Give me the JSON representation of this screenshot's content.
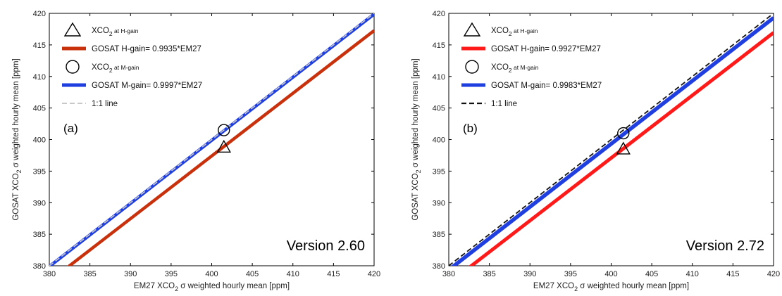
{
  "colors": {
    "red_a": "#c8310c",
    "red_b": "#ff1a1a",
    "blue": "#1f3fe0",
    "oneone_a": "#c8c8c8",
    "oneone_b": "#111111"
  },
  "chart_data": [
    {
      "type": "line",
      "panel": "(a)",
      "version_label": "Version 2.60",
      "xlabel": "EM27 XCO2 σ weighted hourly mean [ppm]",
      "ylabel": "GOSAT XCO2 σ weighted hourly mean [ppm]",
      "xlim": [
        380,
        420
      ],
      "ylim": [
        380,
        420
      ],
      "xticks": [
        380,
        385,
        390,
        395,
        400,
        405,
        410,
        415,
        420
      ],
      "yticks": [
        380,
        385,
        390,
        395,
        400,
        405,
        410,
        415,
        420
      ],
      "grid": false,
      "legend_position": "top-left",
      "legend": [
        {
          "marker": "triangle",
          "prefix": "XCO",
          "sub": "2",
          "suffix": " at H-gain"
        },
        {
          "line": "red",
          "text": "GOSAT H-gain= 0.9935*EM27"
        },
        {
          "marker": "circle",
          "prefix": "XCO",
          "sub": "2",
          "suffix": " at M-gain"
        },
        {
          "line": "blue",
          "text": "GOSAT M-gain= 0.9997*EM27"
        },
        {
          "line": "dashed",
          "text": "1:1 line"
        }
      ],
      "series": [
        {
          "name": "GOSAT H-gain= 0.9935*EM27",
          "slope": 0.9935,
          "x": [
            380,
            420
          ]
        },
        {
          "name": "GOSAT M-gain= 0.9997*EM27",
          "slope": 0.9997,
          "x": [
            380,
            420
          ]
        },
        {
          "name": "1:1 line",
          "slope": 1.0,
          "x": [
            380,
            420
          ]
        }
      ],
      "points": [
        {
          "marker": "triangle",
          "x": 401.5,
          "y": 398.8
        },
        {
          "marker": "circle",
          "x": 401.5,
          "y": 401.5
        }
      ]
    },
    {
      "type": "line",
      "panel": "(b)",
      "version_label": "Version 2.72",
      "xlabel": "EM27 XCO2 σ weighted hourly mean [ppm]",
      "ylabel": "GOSAT XCO2 σ weighted hourly mean [ppm]",
      "xlim": [
        380,
        420
      ],
      "ylim": [
        380,
        420
      ],
      "xticks": [
        380,
        385,
        390,
        395,
        400,
        405,
        410,
        415,
        420
      ],
      "yticks": [
        380,
        385,
        390,
        395,
        400,
        405,
        410,
        415,
        420
      ],
      "grid": false,
      "legend_position": "top-left",
      "legend": [
        {
          "marker": "triangle",
          "prefix": "XCO",
          "sub": "2",
          "suffix": " at H-gain"
        },
        {
          "line": "red",
          "text": "GOSAT H-gain= 0.9927*EM27"
        },
        {
          "marker": "circle",
          "prefix": "XCO",
          "sub": "2",
          "suffix": " at M-gain"
        },
        {
          "line": "blue",
          "text": "GOSAT M-gain= 0.9983*EM27"
        },
        {
          "line": "dashed",
          "text": "1:1 line"
        }
      ],
      "series": [
        {
          "name": "GOSAT H-gain= 0.9927*EM27",
          "slope": 0.9927,
          "x": [
            380,
            420
          ]
        },
        {
          "name": "GOSAT M-gain= 0.9983*EM27",
          "slope": 0.9983,
          "x": [
            380,
            420
          ]
        },
        {
          "name": "1:1 line",
          "slope": 1.0,
          "x": [
            380,
            420
          ]
        }
      ],
      "points": [
        {
          "marker": "triangle",
          "x": 401.5,
          "y": 398.5
        },
        {
          "marker": "circle",
          "x": 401.5,
          "y": 401.0
        }
      ]
    }
  ]
}
